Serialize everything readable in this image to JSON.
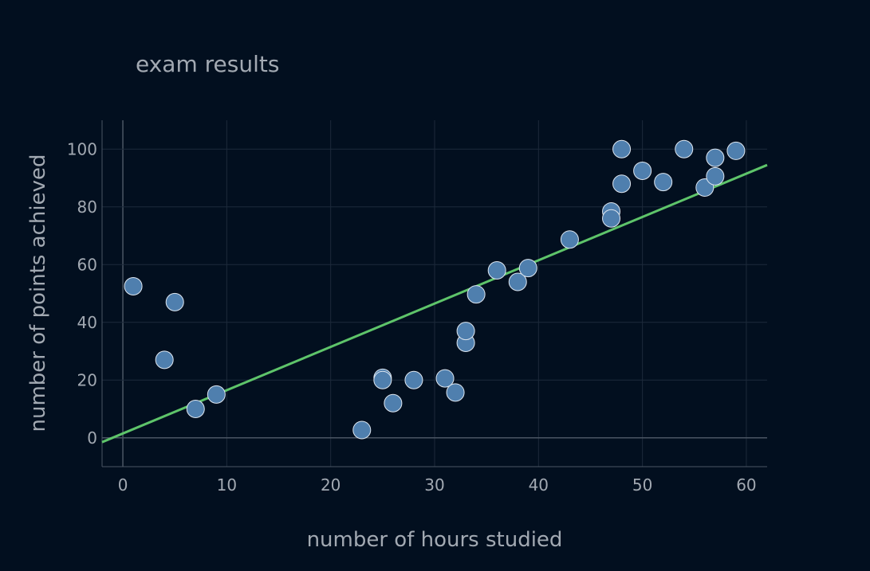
{
  "chart_data": {
    "type": "scatter",
    "title": "exam results",
    "xlabel": "number of hours studied",
    "ylabel": "number of points achieved",
    "xlim": [
      -2,
      62
    ],
    "ylim": [
      -10,
      110
    ],
    "xticks": [
      0,
      10,
      20,
      30,
      40,
      50,
      60
    ],
    "yticks": [
      0,
      20,
      40,
      60,
      80,
      100
    ],
    "grid": true,
    "series": [
      {
        "type": "scatter",
        "color": "#4f7fae",
        "points": [
          {
            "x": 1,
            "y": 52.5
          },
          {
            "x": 4,
            "y": 27
          },
          {
            "x": 5,
            "y": 47
          },
          {
            "x": 7,
            "y": 10
          },
          {
            "x": 9,
            "y": 15
          },
          {
            "x": 23,
            "y": 2.7
          },
          {
            "x": 25,
            "y": 20.8
          },
          {
            "x": 25,
            "y": 20
          },
          {
            "x": 26,
            "y": 12
          },
          {
            "x": 28,
            "y": 20
          },
          {
            "x": 31,
            "y": 20.6
          },
          {
            "x": 32,
            "y": 15.7
          },
          {
            "x": 33,
            "y": 32.9
          },
          {
            "x": 33,
            "y": 37
          },
          {
            "x": 34,
            "y": 49.7
          },
          {
            "x": 36,
            "y": 58
          },
          {
            "x": 38,
            "y": 54
          },
          {
            "x": 39,
            "y": 58.8
          },
          {
            "x": 43,
            "y": 68.7
          },
          {
            "x": 47,
            "y": 78.4
          },
          {
            "x": 47,
            "y": 76
          },
          {
            "x": 48,
            "y": 100
          },
          {
            "x": 48,
            "y": 88
          },
          {
            "x": 50,
            "y": 92.5
          },
          {
            "x": 52,
            "y": 88.6
          },
          {
            "x": 54,
            "y": 100
          },
          {
            "x": 56,
            "y": 86.7
          },
          {
            "x": 57,
            "y": 97
          },
          {
            "x": 57,
            "y": 90.6
          },
          {
            "x": 59,
            "y": 99.4
          }
        ]
      },
      {
        "type": "line",
        "color": "#5ec46a",
        "points": [
          {
            "x": -2,
            "y": -1.5
          },
          {
            "x": 62,
            "y": 94.5
          }
        ]
      }
    ]
  }
}
